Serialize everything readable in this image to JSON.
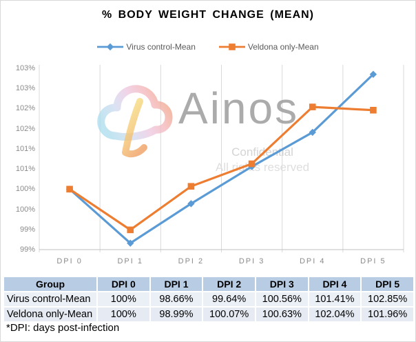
{
  "title": "% BODY WEIGHT CHANGE (MEAN)",
  "watermark": {
    "brand": "Ainos",
    "line1": "Confidential",
    "line2": "All rights reserved"
  },
  "footnote": "*DPI: days post-infection",
  "colors": {
    "virus_series": "#5B9BD5",
    "veldona_series": "#ED7D31",
    "gridline": "#D9D9D9",
    "axis_line": "#BFBFBF",
    "tick_text": "#8A8A8A",
    "title_text": "#595959",
    "table_header_bg": "#B8CCE4"
  },
  "chart_data": {
    "type": "line",
    "title": "% BODY WEIGHT CHANGE (MEAN)",
    "categories": [
      "DPI 0",
      "DPI 1",
      "DPI 2",
      "DPI 3",
      "DPI 4",
      "DPI 5"
    ],
    "series": [
      {
        "name": "Virus control-Mean",
        "marker": "diamond",
        "color": "#5B9BD5",
        "values": [
          100,
          98.66,
          99.64,
          100.56,
          101.41,
          102.85
        ]
      },
      {
        "name": "Veldona only-Mean",
        "marker": "square",
        "color": "#ED7D31",
        "values": [
          100,
          98.99,
          100.07,
          100.63,
          102.04,
          101.96
        ]
      }
    ],
    "xlabel": "",
    "ylabel": "",
    "y_axis": {
      "min": 98.5,
      "max": 103,
      "step": 0.5,
      "tick_labels": [
        "103%",
        "103%",
        "102%",
        "102%",
        "101%",
        "101%",
        "100%",
        "100%",
        "99%",
        "99%"
      ]
    },
    "legend_position": "top",
    "gridlines": "vertical-only"
  },
  "table": {
    "headers": [
      "Group",
      "DPI 0",
      "DPI 1",
      "DPI 2",
      "DPI 3",
      "DPI 4",
      "DPI 5"
    ],
    "rows": [
      [
        "Virus control-Mean",
        "100%",
        "98.66%",
        "99.64%",
        "100.56%",
        "101.41%",
        "102.85%"
      ],
      [
        "Veldona only-Mean",
        "100%",
        "98.99%",
        "100.07%",
        "100.63%",
        "102.04%",
        "101.96%"
      ]
    ]
  }
}
